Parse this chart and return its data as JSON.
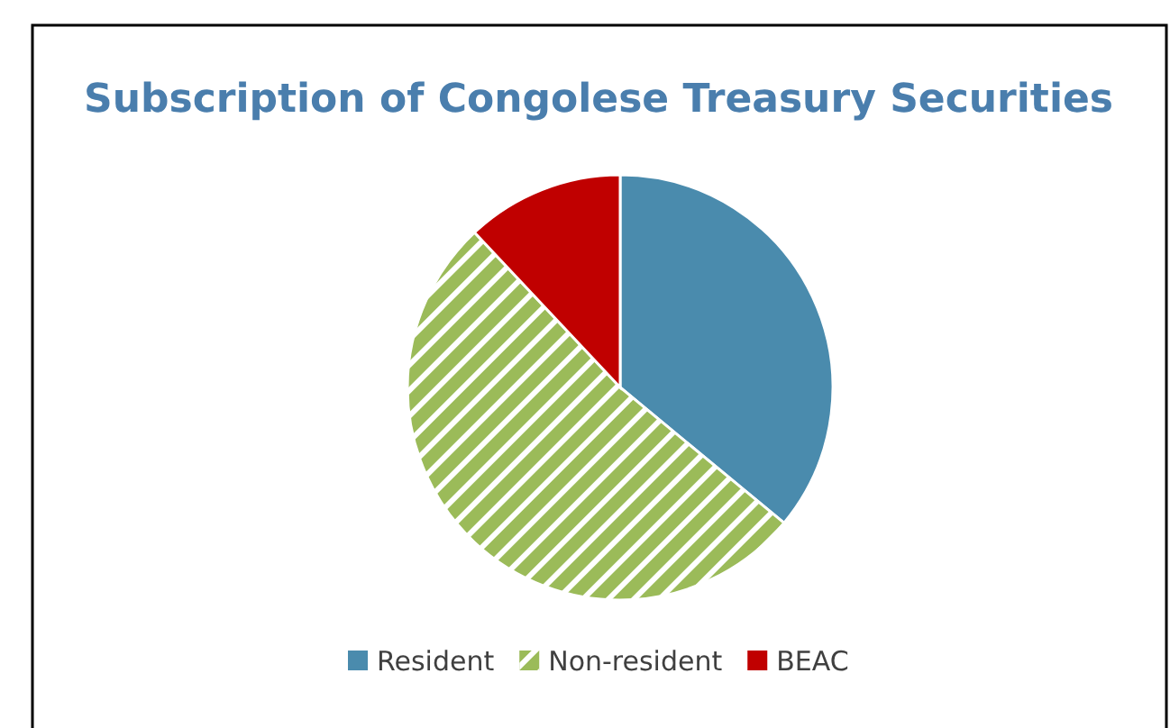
{
  "chart_data": {
    "type": "pie",
    "title": "Subscription of Congolese Treasury Securities",
    "categories": [
      "Resident",
      "Non-resident",
      "BEAC"
    ],
    "values": [
      36,
      52,
      12
    ],
    "colors": [
      "#4a8bad",
      "#9bbb59",
      "#c00000"
    ],
    "legend": "bottom"
  }
}
